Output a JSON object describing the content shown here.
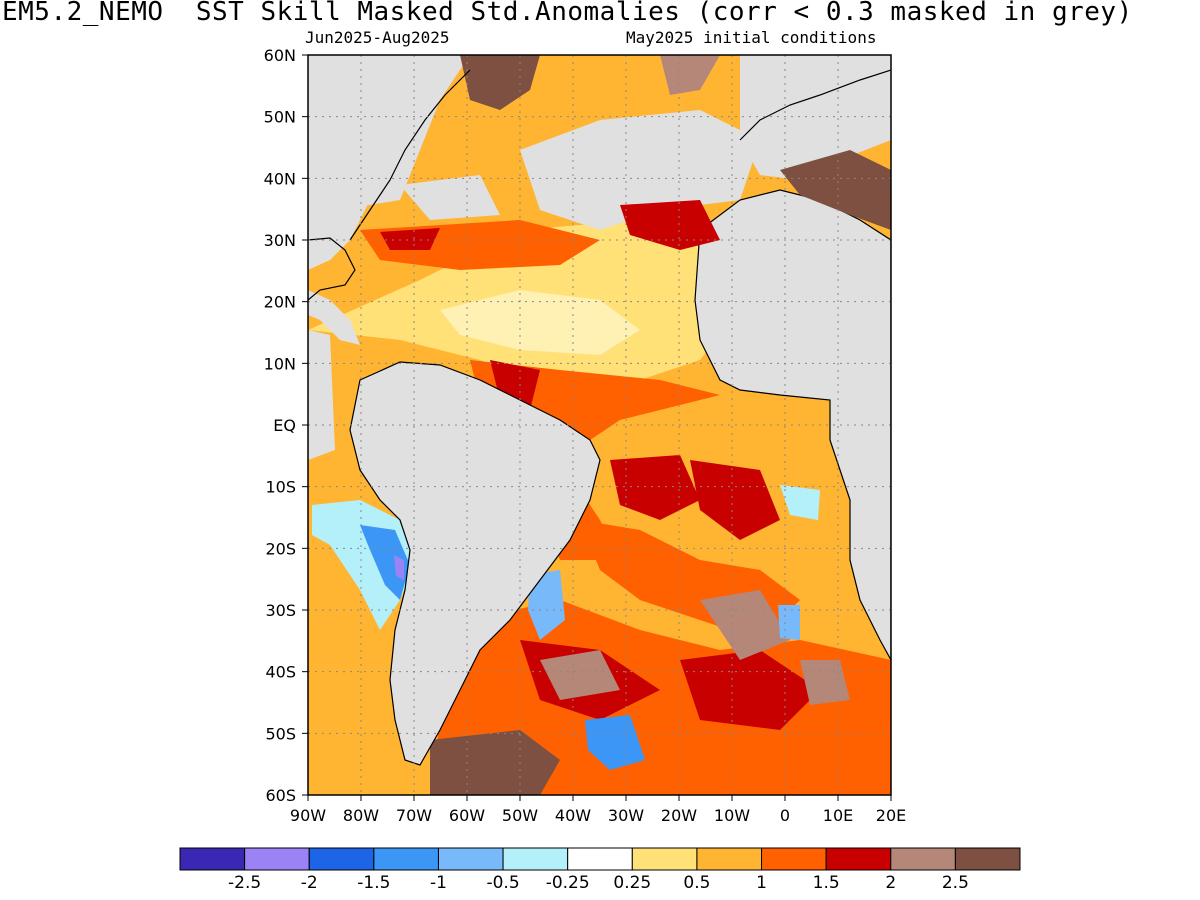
{
  "title": "EM5.2_NEMO  SST Skill Masked Std.Anomalies (corr < 0.3 masked in grey)",
  "subtitle_left": "Jun2025-Aug2025",
  "subtitle_right": "May2025 initial conditions",
  "map": {
    "lon_range": [
      -90,
      20
    ],
    "lat_range": [
      -60,
      60
    ],
    "lat_ticks": [
      "60N",
      "50N",
      "40N",
      "30N",
      "20N",
      "10N",
      "EQ",
      "10S",
      "20S",
      "30S",
      "40S",
      "50S",
      "60S"
    ],
    "lon_ticks": [
      "90W",
      "80W",
      "70W",
      "60W",
      "50W",
      "40W",
      "30W",
      "20W",
      "10W",
      "0",
      "10E",
      "20E"
    ],
    "grid": true,
    "mask_color": "#e0e0e0"
  },
  "colorbar": {
    "colors": [
      "#3a28b4",
      "#9b83f5",
      "#1e64e6",
      "#3c96f5",
      "#78b9fa",
      "#b4f0fa",
      "#ffffff",
      "#ffe178",
      "#ffb432",
      "#ff6000",
      "#c80000",
      "#b48778",
      "#7d5041"
    ],
    "labels": [
      "-2.5",
      "-2",
      "-1.5",
      "-1",
      "-0.5",
      "-0.25",
      "0.25",
      "0.5",
      "1",
      "1.5",
      "2",
      "2.5"
    ]
  }
}
